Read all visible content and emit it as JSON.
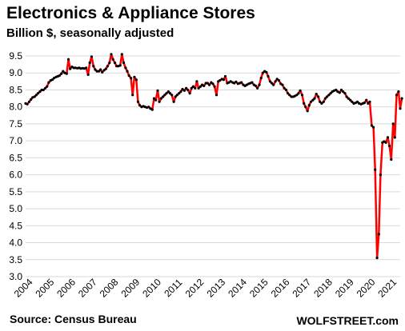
{
  "chart_data": {
    "type": "line",
    "title": "Electronics & Appliance Stores",
    "subtitle": "Billion $, seasonally adjusted",
    "xlabel": "",
    "ylabel": "",
    "xlim": [
      2004,
      2021.5
    ],
    "ylim": [
      3.0,
      9.5
    ],
    "y_ticks": [
      "3.0",
      "3.5",
      "4.0",
      "4.5",
      "5.0",
      "5.5",
      "6.0",
      "6.5",
      "7.0",
      "7.5",
      "8.0",
      "8.5",
      "9.0",
      "9.5"
    ],
    "x_ticks": [
      "2004",
      "2005",
      "2006",
      "2007",
      "2008",
      "2009",
      "2010",
      "2011",
      "2012",
      "2013",
      "2014",
      "2015",
      "2016",
      "2017",
      "2018",
      "2019",
      "2020",
      "2021"
    ],
    "grid": "horizontal",
    "line_color": "#ff0000",
    "marker_color": "#000000",
    "series": [
      {
        "points": [
          [
            2004.0,
            8.1
          ],
          [
            2004.08,
            8.08
          ],
          [
            2004.17,
            8.15
          ],
          [
            2004.25,
            8.22
          ],
          [
            2004.33,
            8.28
          ],
          [
            2004.42,
            8.3
          ],
          [
            2004.5,
            8.35
          ],
          [
            2004.58,
            8.4
          ],
          [
            2004.67,
            8.45
          ],
          [
            2004.75,
            8.5
          ],
          [
            2004.83,
            8.5
          ],
          [
            2004.92,
            8.55
          ],
          [
            2005.0,
            8.6
          ],
          [
            2005.08,
            8.72
          ],
          [
            2005.17,
            8.78
          ],
          [
            2005.25,
            8.8
          ],
          [
            2005.33,
            8.85
          ],
          [
            2005.42,
            8.88
          ],
          [
            2005.5,
            8.9
          ],
          [
            2005.58,
            8.92
          ],
          [
            2005.67,
            8.98
          ],
          [
            2005.75,
            9.05
          ],
          [
            2005.83,
            9.0
          ],
          [
            2005.92,
            8.98
          ],
          [
            2006.0,
            9.4
          ],
          [
            2006.08,
            9.12
          ],
          [
            2006.17,
            9.18
          ],
          [
            2006.25,
            9.15
          ],
          [
            2006.33,
            9.15
          ],
          [
            2006.42,
            9.14
          ],
          [
            2006.5,
            9.15
          ],
          [
            2006.58,
            9.13
          ],
          [
            2006.67,
            9.14
          ],
          [
            2006.75,
            9.13
          ],
          [
            2006.83,
            9.15
          ],
          [
            2006.92,
            8.95
          ],
          [
            2007.0,
            9.3
          ],
          [
            2007.08,
            9.48
          ],
          [
            2007.17,
            9.2
          ],
          [
            2007.25,
            9.1
          ],
          [
            2007.33,
            9.05
          ],
          [
            2007.42,
            9.05
          ],
          [
            2007.5,
            9.1
          ],
          [
            2007.58,
            9.02
          ],
          [
            2007.67,
            9.08
          ],
          [
            2007.75,
            9.12
          ],
          [
            2007.83,
            9.2
          ],
          [
            2007.92,
            9.3
          ],
          [
            2008.0,
            9.55
          ],
          [
            2008.08,
            9.4
          ],
          [
            2008.17,
            9.3
          ],
          [
            2008.25,
            9.2
          ],
          [
            2008.33,
            9.2
          ],
          [
            2008.42,
            9.22
          ],
          [
            2008.5,
            9.55
          ],
          [
            2008.58,
            9.3
          ],
          [
            2008.67,
            9.15
          ],
          [
            2008.75,
            9.05
          ],
          [
            2008.83,
            8.92
          ],
          [
            2008.92,
            8.85
          ],
          [
            2009.0,
            8.35
          ],
          [
            2009.08,
            8.88
          ],
          [
            2009.17,
            8.8
          ],
          [
            2009.25,
            8.15
          ],
          [
            2009.33,
            8.05
          ],
          [
            2009.42,
            8.0
          ],
          [
            2009.5,
            8.02
          ],
          [
            2009.58,
            8.0
          ],
          [
            2009.67,
            7.98
          ],
          [
            2009.75,
            8.0
          ],
          [
            2009.83,
            7.95
          ],
          [
            2009.92,
            7.92
          ],
          [
            2010.0,
            8.25
          ],
          [
            2010.08,
            8.2
          ],
          [
            2010.17,
            8.48
          ],
          [
            2010.25,
            8.15
          ],
          [
            2010.33,
            8.25
          ],
          [
            2010.42,
            8.3
          ],
          [
            2010.5,
            8.35
          ],
          [
            2010.58,
            8.4
          ],
          [
            2010.67,
            8.45
          ],
          [
            2010.75,
            8.4
          ],
          [
            2010.83,
            8.35
          ],
          [
            2010.92,
            8.15
          ],
          [
            2011.0,
            8.3
          ],
          [
            2011.08,
            8.35
          ],
          [
            2011.17,
            8.4
          ],
          [
            2011.25,
            8.45
          ],
          [
            2011.33,
            8.52
          ],
          [
            2011.42,
            8.48
          ],
          [
            2011.5,
            8.55
          ],
          [
            2011.58,
            8.5
          ],
          [
            2011.67,
            8.4
          ],
          [
            2011.75,
            8.55
          ],
          [
            2011.83,
            8.6
          ],
          [
            2011.92,
            8.55
          ],
          [
            2012.0,
            8.75
          ],
          [
            2012.08,
            8.55
          ],
          [
            2012.17,
            8.6
          ],
          [
            2012.25,
            8.65
          ],
          [
            2012.33,
            8.62
          ],
          [
            2012.42,
            8.7
          ],
          [
            2012.5,
            8.7
          ],
          [
            2012.58,
            8.65
          ],
          [
            2012.67,
            8.72
          ],
          [
            2012.75,
            8.68
          ],
          [
            2012.83,
            8.6
          ],
          [
            2012.92,
            8.35
          ],
          [
            2013.0,
            8.75
          ],
          [
            2013.08,
            8.78
          ],
          [
            2013.17,
            8.82
          ],
          [
            2013.25,
            8.8
          ],
          [
            2013.33,
            8.9
          ],
          [
            2013.42,
            8.7
          ],
          [
            2013.5,
            8.72
          ],
          [
            2013.58,
            8.75
          ],
          [
            2013.67,
            8.72
          ],
          [
            2013.75,
            8.7
          ],
          [
            2013.83,
            8.74
          ],
          [
            2013.92,
            8.68
          ],
          [
            2014.0,
            8.7
          ],
          [
            2014.08,
            8.72
          ],
          [
            2014.17,
            8.65
          ],
          [
            2014.25,
            8.62
          ],
          [
            2014.33,
            8.65
          ],
          [
            2014.42,
            8.68
          ],
          [
            2014.5,
            8.7
          ],
          [
            2014.58,
            8.72
          ],
          [
            2014.67,
            8.65
          ],
          [
            2014.75,
            8.62
          ],
          [
            2014.83,
            8.55
          ],
          [
            2014.92,
            8.65
          ],
          [
            2015.0,
            8.85
          ],
          [
            2015.08,
            9.0
          ],
          [
            2015.17,
            9.05
          ],
          [
            2015.25,
            9.02
          ],
          [
            2015.33,
            8.9
          ],
          [
            2015.42,
            8.75
          ],
          [
            2015.5,
            8.7
          ],
          [
            2015.58,
            8.65
          ],
          [
            2015.67,
            8.75
          ],
          [
            2015.75,
            8.82
          ],
          [
            2015.83,
            8.78
          ],
          [
            2015.92,
            8.68
          ],
          [
            2016.0,
            8.65
          ],
          [
            2016.08,
            8.55
          ],
          [
            2016.17,
            8.5
          ],
          [
            2016.25,
            8.4
          ],
          [
            2016.33,
            8.35
          ],
          [
            2016.42,
            8.3
          ],
          [
            2016.5,
            8.3
          ],
          [
            2016.58,
            8.32
          ],
          [
            2016.67,
            8.35
          ],
          [
            2016.75,
            8.4
          ],
          [
            2016.83,
            8.48
          ],
          [
            2016.92,
            8.35
          ],
          [
            2017.0,
            8.1
          ],
          [
            2017.08,
            8.0
          ],
          [
            2017.17,
            7.88
          ],
          [
            2017.25,
            8.05
          ],
          [
            2017.33,
            8.15
          ],
          [
            2017.42,
            8.2
          ],
          [
            2017.5,
            8.25
          ],
          [
            2017.58,
            8.38
          ],
          [
            2017.67,
            8.3
          ],
          [
            2017.75,
            8.15
          ],
          [
            2017.83,
            8.1
          ],
          [
            2017.92,
            8.15
          ],
          [
            2018.0,
            8.25
          ],
          [
            2018.08,
            8.3
          ],
          [
            2018.17,
            8.35
          ],
          [
            2018.25,
            8.4
          ],
          [
            2018.33,
            8.45
          ],
          [
            2018.42,
            8.48
          ],
          [
            2018.5,
            8.5
          ],
          [
            2018.58,
            8.45
          ],
          [
            2018.67,
            8.42
          ],
          [
            2018.75,
            8.5
          ],
          [
            2018.83,
            8.45
          ],
          [
            2018.92,
            8.4
          ],
          [
            2019.0,
            8.3
          ],
          [
            2019.08,
            8.25
          ],
          [
            2019.17,
            8.2
          ],
          [
            2019.25,
            8.15
          ],
          [
            2019.33,
            8.1
          ],
          [
            2019.42,
            8.12
          ],
          [
            2019.5,
            8.15
          ],
          [
            2019.58,
            8.1
          ],
          [
            2019.67,
            8.08
          ],
          [
            2019.75,
            8.1
          ],
          [
            2019.83,
            8.12
          ],
          [
            2019.92,
            8.2
          ],
          [
            2020.0,
            8.1
          ],
          [
            2020.08,
            8.15
          ],
          [
            2020.17,
            7.45
          ],
          [
            2020.25,
            7.4
          ],
          [
            2020.33,
            6.15
          ],
          [
            2020.42,
            3.55
          ],
          [
            2020.5,
            4.25
          ],
          [
            2020.58,
            6.0
          ],
          [
            2020.67,
            6.95
          ],
          [
            2020.75,
            6.98
          ],
          [
            2020.83,
            6.95
          ],
          [
            2020.92,
            7.1
          ],
          [
            2021.0,
            6.85
          ],
          [
            2021.08,
            6.45
          ],
          [
            2021.17,
            7.5
          ],
          [
            2021.25,
            7.1
          ],
          [
            2021.33,
            8.35
          ],
          [
            2021.42,
            8.45
          ],
          [
            2021.5,
            7.95
          ],
          [
            2021.58,
            8.25
          ]
        ]
      }
    ]
  },
  "footer": {
    "source": "Source: Census Bureau",
    "brand": "WOLFSTREET.com"
  }
}
